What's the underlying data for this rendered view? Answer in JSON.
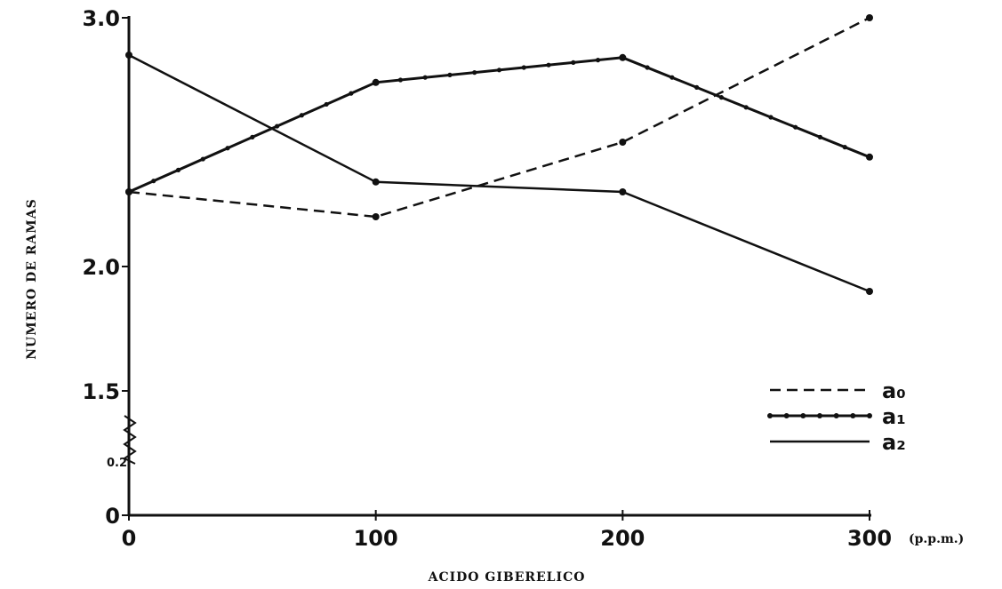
{
  "chart_data": {
    "type": "line",
    "title": "",
    "xlabel": "ACIDO GIBERELICO",
    "xunit": "(p.p.m.)",
    "ylabel": "NUMERO DE RAMAS",
    "x": [
      0,
      100,
      200,
      300
    ],
    "x_tick_labels": [
      "0",
      "100",
      "200",
      "300"
    ],
    "y_tick_labels": [
      "3.0",
      "2.0",
      "1.5",
      "0"
    ],
    "y_ticks": [
      3.0,
      2.0,
      1.5,
      0
    ],
    "axis_break_label": "0.2",
    "y_axis_break": true,
    "series": [
      {
        "name": "a₀",
        "style": "dashed",
        "values": [
          2.3,
          2.2,
          2.5,
          3.0
        ]
      },
      {
        "name": "a₁",
        "style": "dotted-markers",
        "values": [
          2.3,
          2.74,
          2.84,
          2.44
        ]
      },
      {
        "name": "a₂",
        "style": "solid",
        "values": [
          2.85,
          2.34,
          2.3,
          1.9
        ]
      }
    ],
    "legend_position": "right",
    "grid": false,
    "colors": {
      "line": "#111111",
      "background": "#ffffff"
    }
  }
}
